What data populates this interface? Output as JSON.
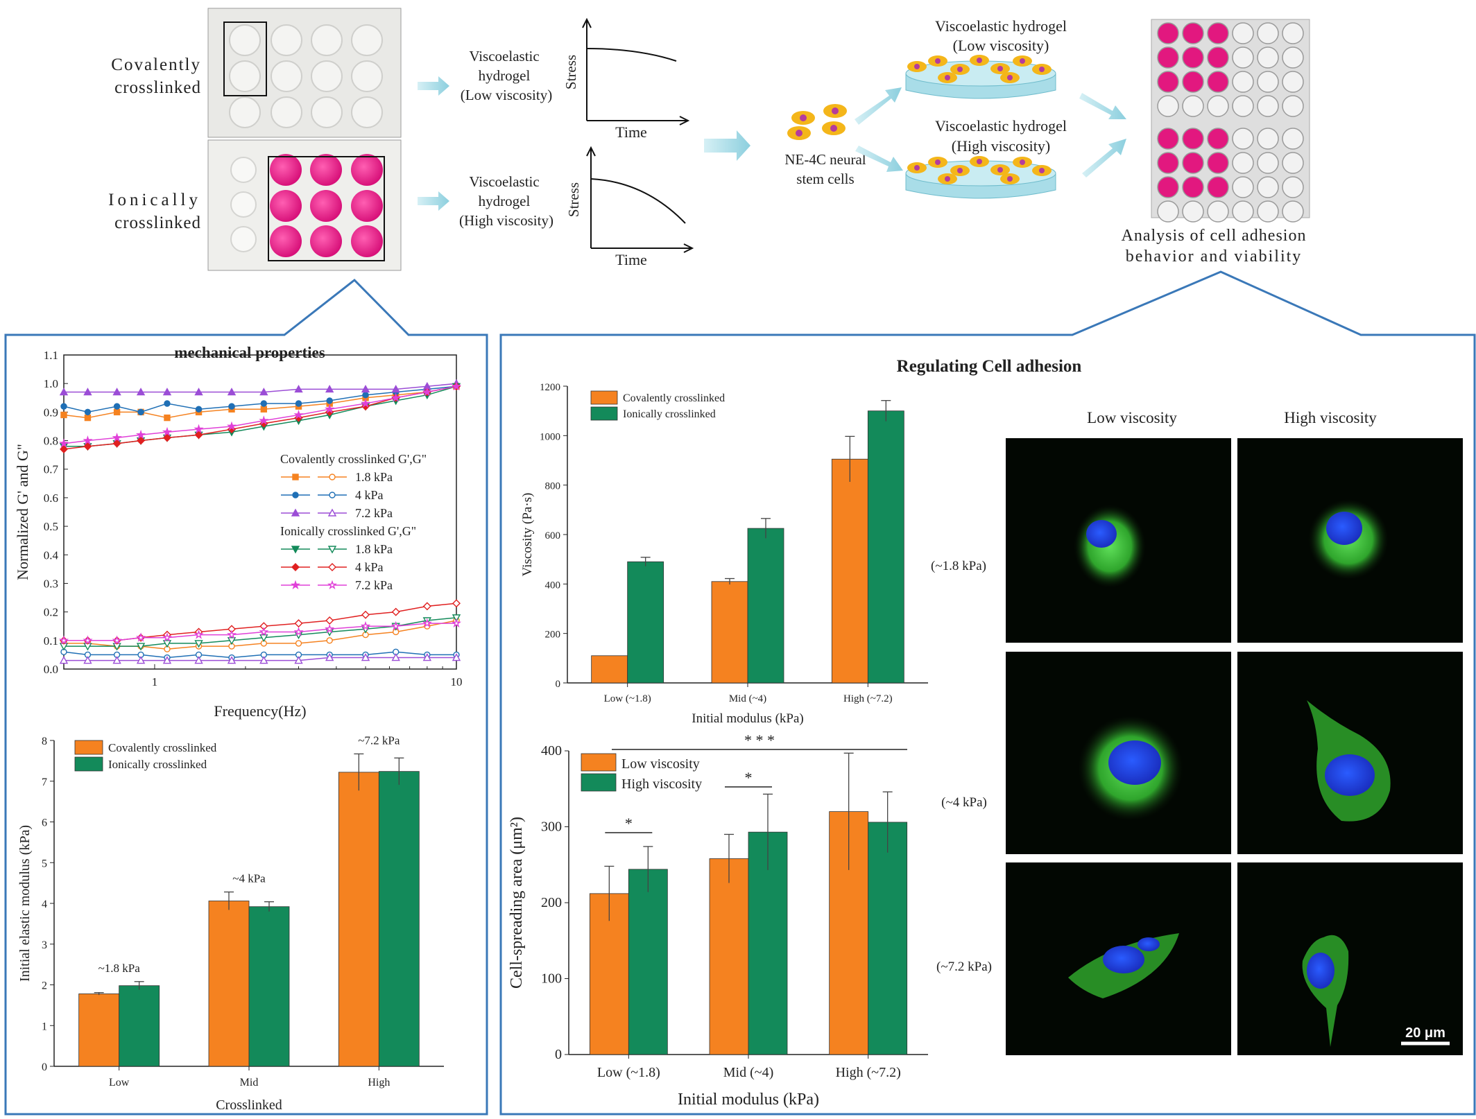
{
  "top": {
    "covalent_label": [
      "Covalently",
      "crosslinked"
    ],
    "ionic_label": [
      "Ionically",
      "crosslinked"
    ],
    "low_curve_label": [
      "Viscoelastic",
      "hydrogel",
      "(Low viscosity)"
    ],
    "high_curve_label": [
      "Viscoelastic",
      "hydrogel",
      "(High viscosity)"
    ],
    "stress_axis": "Stress",
    "time_axis": "Time",
    "cells_label": [
      "NE-4C neural",
      "stem cells"
    ],
    "dish_low_label": [
      "Viscoelastic hydrogel",
      "(Low viscosity)"
    ],
    "dish_high_label": [
      "Viscoelastic hydrogel",
      "(High viscosity)"
    ],
    "analysis_label": [
      "Analysis of cell adhesion",
      "behavior and viability"
    ]
  },
  "left_panel": {
    "title": "mechanical properties"
  },
  "right_panel": {
    "title": "Regulating Cell adhesion",
    "col_headers": [
      "Low viscosity",
      "High viscosity"
    ],
    "row_labels": [
      "(~1.8 kPa)",
      "(~4 kPa)",
      "(~7.2 kPa)"
    ],
    "scale_bar": "20 μm"
  },
  "colors": {
    "orange": "#f58220",
    "green": "#138a5a",
    "frame": "#3a78b8",
    "arrow": "#a9dbe6",
    "pink": "#e2187f"
  },
  "chart_data": [
    {
      "id": "rheology",
      "type": "line",
      "title": "",
      "xlabel": "Frequency(Hz)",
      "ylabel": "Normalized G' and G\"",
      "xscale": "log",
      "xlim": [
        0.5,
        10
      ],
      "ylim": [
        0,
        1.1
      ],
      "x_ticks": [
        1,
        10
      ],
      "y_ticks": [
        0.0,
        0.1,
        0.2,
        0.3,
        0.4,
        0.5,
        0.6,
        0.7,
        0.8,
        0.9,
        1.0,
        1.1
      ],
      "legend_groups": [
        "Covalently crosslinked G',G\"",
        "Ionically crosslinked G',G\""
      ],
      "x": [
        0.5,
        0.6,
        0.75,
        0.9,
        1.1,
        1.4,
        1.8,
        2.3,
        3,
        3.8,
        5,
        6.3,
        8,
        10
      ],
      "series": [
        {
          "name": "1.8 kPa",
          "group": 0,
          "kind": "G'",
          "color": "#f58220",
          "marker": "square",
          "values": [
            0.89,
            0.88,
            0.9,
            0.9,
            0.88,
            0.9,
            0.91,
            0.91,
            0.92,
            0.93,
            0.95,
            0.96,
            0.97,
            0.99
          ]
        },
        {
          "name": "1.8 kPa",
          "group": 0,
          "kind": "G\"",
          "color": "#f58220",
          "marker": "open-circle",
          "values": [
            0.09,
            0.09,
            0.08,
            0.08,
            0.07,
            0.08,
            0.08,
            0.09,
            0.09,
            0.1,
            0.12,
            0.13,
            0.15,
            0.17
          ]
        },
        {
          "name": "4 kPa",
          "group": 0,
          "kind": "G'",
          "color": "#1f6fb5",
          "marker": "circle",
          "values": [
            0.92,
            0.9,
            0.92,
            0.9,
            0.93,
            0.91,
            0.92,
            0.93,
            0.93,
            0.94,
            0.96,
            0.97,
            0.98,
            0.99
          ]
        },
        {
          "name": "4 kPa",
          "group": 0,
          "kind": "G\"",
          "color": "#1f6fb5",
          "marker": "open-circle",
          "values": [
            0.06,
            0.05,
            0.05,
            0.05,
            0.04,
            0.05,
            0.04,
            0.05,
            0.05,
            0.05,
            0.05,
            0.06,
            0.05,
            0.05
          ]
        },
        {
          "name": "7.2 kPa",
          "group": 0,
          "kind": "G'",
          "color": "#9b4dd6",
          "marker": "triangle",
          "values": [
            0.97,
            0.97,
            0.97,
            0.97,
            0.97,
            0.97,
            0.97,
            0.97,
            0.98,
            0.98,
            0.98,
            0.98,
            0.99,
            1.0
          ]
        },
        {
          "name": "7.2 kPa",
          "group": 0,
          "kind": "G\"",
          "color": "#9b4dd6",
          "marker": "open-triangle",
          "values": [
            0.03,
            0.03,
            0.03,
            0.03,
            0.03,
            0.03,
            0.03,
            0.03,
            0.03,
            0.04,
            0.04,
            0.04,
            0.04,
            0.04
          ]
        },
        {
          "name": "1.8 kPa",
          "group": 1,
          "kind": "G'",
          "color": "#138a5a",
          "marker": "tri-down",
          "values": [
            0.78,
            0.78,
            0.79,
            0.8,
            0.81,
            0.82,
            0.83,
            0.85,
            0.87,
            0.89,
            0.92,
            0.94,
            0.96,
            0.99
          ]
        },
        {
          "name": "1.8 kPa",
          "group": 1,
          "kind": "G\"",
          "color": "#138a5a",
          "marker": "open-tri-down",
          "values": [
            0.08,
            0.08,
            0.08,
            0.08,
            0.09,
            0.09,
            0.1,
            0.11,
            0.12,
            0.13,
            0.14,
            0.15,
            0.17,
            0.18
          ]
        },
        {
          "name": "4 kPa",
          "group": 1,
          "kind": "G'",
          "color": "#e02020",
          "marker": "diamond",
          "values": [
            0.77,
            0.78,
            0.79,
            0.8,
            0.81,
            0.82,
            0.84,
            0.86,
            0.88,
            0.9,
            0.92,
            0.95,
            0.97,
            0.99
          ]
        },
        {
          "name": "4 kPa",
          "group": 1,
          "kind": "G\"",
          "color": "#e02020",
          "marker": "open-diamond",
          "values": [
            0.1,
            0.1,
            0.1,
            0.11,
            0.12,
            0.13,
            0.14,
            0.15,
            0.16,
            0.17,
            0.19,
            0.2,
            0.22,
            0.23
          ]
        },
        {
          "name": "7.2 kPa",
          "group": 1,
          "kind": "G'",
          "color": "#e040d8",
          "marker": "star",
          "values": [
            0.79,
            0.8,
            0.81,
            0.82,
            0.83,
            0.84,
            0.85,
            0.87,
            0.89,
            0.91,
            0.93,
            0.95,
            0.97,
            0.99
          ]
        },
        {
          "name": "7.2 kPa",
          "group": 1,
          "kind": "G\"",
          "color": "#e040d8",
          "marker": "open-star",
          "values": [
            0.1,
            0.1,
            0.1,
            0.11,
            0.11,
            0.12,
            0.12,
            0.13,
            0.13,
            0.14,
            0.15,
            0.15,
            0.16,
            0.16
          ]
        }
      ]
    },
    {
      "id": "modulus",
      "type": "bar",
      "title": "",
      "xlabel": "Crosslinked",
      "ylabel": "Initial elastic modulus (kPa)",
      "ylim": [
        0,
        8
      ],
      "y_ticks": [
        0,
        1,
        2,
        3,
        4,
        5,
        6,
        7,
        8
      ],
      "categories": [
        "Low",
        "Mid",
        "High"
      ],
      "annotations": [
        "~1.8 kPa",
        "~4 kPa",
        "~7.2 kPa"
      ],
      "series": [
        {
          "name": "Covalently crosslinked",
          "color": "#f58220",
          "values": [
            1.78,
            4.06,
            7.22
          ],
          "errors": [
            0.03,
            0.22,
            0.45
          ]
        },
        {
          "name": "Ionically crosslinked",
          "color": "#138a5a",
          "values": [
            1.98,
            3.92,
            7.24
          ],
          "errors": [
            0.1,
            0.12,
            0.33
          ]
        }
      ]
    },
    {
      "id": "viscosity",
      "type": "bar",
      "title": "",
      "xlabel": "Initial modulus (kPa)",
      "ylabel": "Viscosity (Pa·s)",
      "ylim": [
        0,
        1200
      ],
      "y_ticks": [
        0,
        200,
        400,
        600,
        800,
        1000,
        1200
      ],
      "categories": [
        "Low (~1.8)",
        "Mid (~4)",
        "High (~7.2)"
      ],
      "series": [
        {
          "name": "Covalently crosslinked",
          "color": "#f58220",
          "values": [
            110,
            410,
            905
          ],
          "errors": [
            0,
            12,
            92
          ]
        },
        {
          "name": "Ionically crosslinked",
          "color": "#138a5a",
          "values": [
            490,
            625,
            1100
          ],
          "errors": [
            18,
            40,
            42
          ]
        }
      ]
    },
    {
      "id": "spreading",
      "type": "bar",
      "title": "",
      "xlabel": "Initial modulus (kPa)",
      "ylabel": "Cell-spreading area (μm²)",
      "ylim": [
        0,
        400
      ],
      "y_ticks": [
        0,
        100,
        200,
        300,
        400
      ],
      "categories": [
        "Low (~1.8)",
        "Mid (~4)",
        "High (~7.2)"
      ],
      "significance": [
        "*",
        "*",
        "* * *"
      ],
      "series": [
        {
          "name": "Low viscosity",
          "color": "#f58220",
          "values": [
            212,
            258,
            320
          ],
          "errors": [
            36,
            32,
            77
          ]
        },
        {
          "name": "High viscosity",
          "color": "#138a5a",
          "values": [
            244,
            293,
            306
          ],
          "errors": [
            30,
            50,
            40
          ]
        }
      ]
    }
  ]
}
